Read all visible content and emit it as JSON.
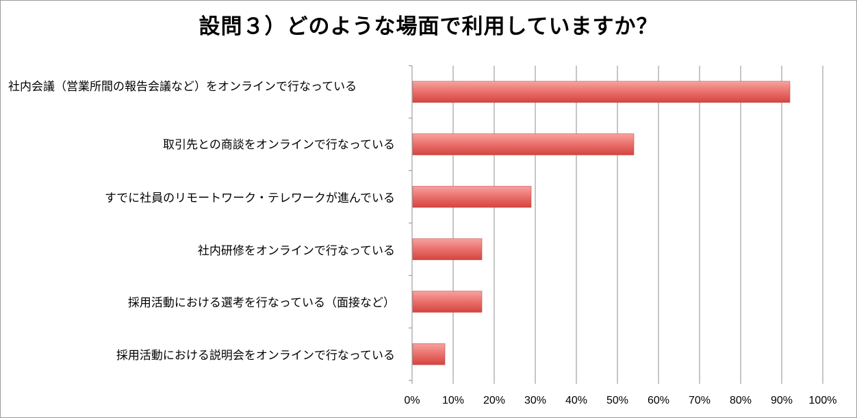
{
  "chart_data": {
    "type": "bar",
    "orientation": "horizontal",
    "title": "設問３）どのような場面で利用していますか？",
    "categories": [
      "社内会議（営業所間の報告会議など）をオンラインで行なっている",
      "取引先との商談をオンラインで行なっている",
      "すでに社員のリモートワーク・テレワークが進んでいる",
      "社内研修をオンラインで行なっている",
      "採用活動における選考を行なっている（面接など）",
      "採用活動における説明会をオンラインで行なっている"
    ],
    "values": [
      0.92,
      0.54,
      0.29,
      0.17,
      0.17,
      0.08
    ],
    "xlim": [
      0,
      1
    ],
    "ticks": [
      0,
      0.1,
      0.2,
      0.3,
      0.4,
      0.5,
      0.6,
      0.7,
      0.8,
      0.9,
      1.0
    ],
    "tick_labels": [
      "0%",
      "10%",
      "20%",
      "30%",
      "40%",
      "50%",
      "60%",
      "70%",
      "80%",
      "90%",
      "100%"
    ],
    "grid": true,
    "legend": "none",
    "bar_color": "#d9534f",
    "bar_highlight": "#f7a3a0"
  }
}
